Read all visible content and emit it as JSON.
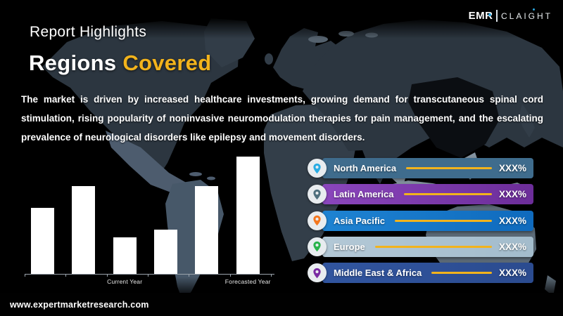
{
  "header": {
    "kicker": "Report Highlights",
    "title_white": "Regions",
    "title_accent": "Covered",
    "accent_color": "#F2B31C"
  },
  "logo": {
    "brand": "EMR",
    "suffix": "CLAIGHT",
    "dot_color": "#2AA7E0"
  },
  "summary": "The market is driven by increased healthcare investments, growing demand for transcutaneous spinal cord stimulation, rising popularity of noninvasive neuromodulation therapies for pain management, and the escalating prevalence of neurological disorders like epilepsy and movement disorders.",
  "chart_data": {
    "type": "bar",
    "categories": [
      "bar1",
      "bar2",
      "bar3",
      "bar4",
      "bar5",
      "bar6"
    ],
    "values": [
      56,
      75,
      31,
      38,
      75,
      100
    ],
    "value_unit": "relative bar height, % of tallest bar (no value axis shown)",
    "title": "",
    "xlabel": "",
    "ylabel": "",
    "ylim": [
      0,
      100
    ],
    "grid": false,
    "legend": false,
    "bar_color": "#FFFFFF",
    "axis_color": "#9AA3AC",
    "axis_labels": [
      {
        "text": "Current Year",
        "bar_index": 2
      },
      {
        "text": "Forecasted Year",
        "bar_index": 5
      }
    ]
  },
  "regions": {
    "line_color": "#F2B31C",
    "badge_color": "#E8ECEF",
    "items": [
      {
        "label": "North America",
        "value": "XXX%",
        "bar_color": "#3F6C8D",
        "bar_color_2": "#3F6C8D",
        "pin_color": "#29ACE3"
      },
      {
        "label": "Latin America",
        "value": "XXX%",
        "bar_color": "#8A46BC",
        "bar_color_2": "#6C2D99",
        "pin_color": "#50707E"
      },
      {
        "label": "Asia Pacific",
        "value": "XXX%",
        "bar_color": "#1E83D2",
        "bar_color_2": "#0F6ABD",
        "pin_color": "#F4771F"
      },
      {
        "label": "Europe",
        "value": "XXX%",
        "bar_color": "#B3C8D6",
        "bar_color_2": "#A3BCCC",
        "pin_color": "#2AB34B"
      },
      {
        "label": "Middle East & Africa",
        "value": "XXX%",
        "bar_color": "#31559F",
        "bar_color_2": "#2B4B8F",
        "pin_color": "#7A2BA2"
      }
    ]
  },
  "footer": {
    "website": "www.expertmarketresearch.com"
  }
}
